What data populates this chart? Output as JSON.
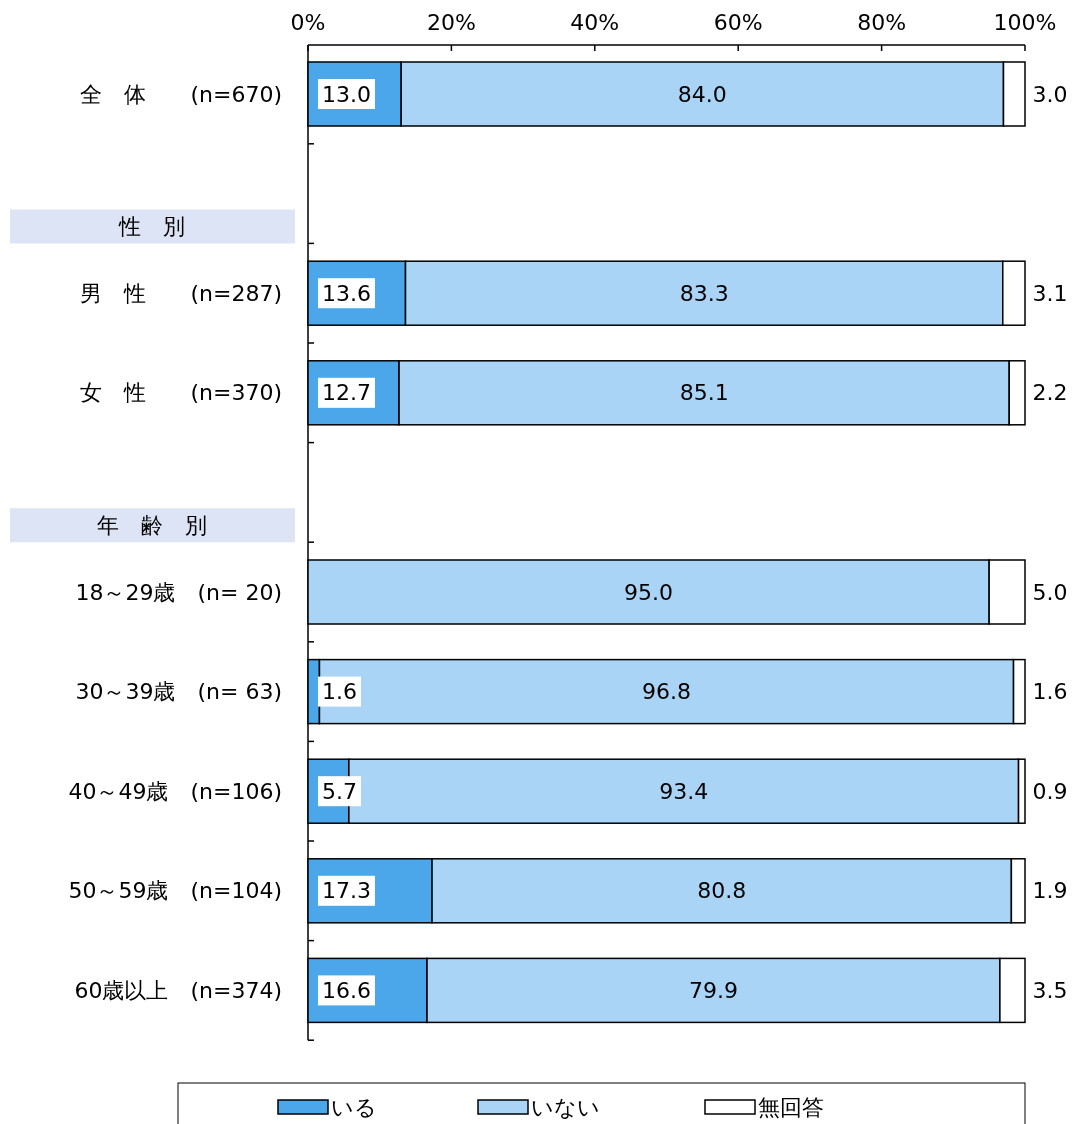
{
  "chart_data": {
    "type": "bar",
    "orientation": "horizontal",
    "stacked": true,
    "legend": "bottom",
    "grid": false,
    "categories": [
      "全　体　　(n=670)",
      null,
      "男　性　　(n=287)",
      "女　性　　(n=370)",
      null,
      "18～29歳　(n=  20)",
      "30～39歳　(n=  63)",
      "40～49歳　(n=106)",
      "50～59歳　(n=104)",
      "60歳以上　(n=374)"
    ],
    "series": [
      {
        "name": "いる",
        "color": "#4ba7ea",
        "values": [
          13.0,
          null,
          13.6,
          12.7,
          null,
          0,
          1.6,
          5.7,
          17.3,
          16.6
        ],
        "value_labels": [
          "13.0",
          null,
          "13.6",
          "12.7",
          null,
          null,
          "1.6",
          "5.7",
          "17.3",
          "16.6"
        ]
      },
      {
        "name": "いない",
        "color": "#a9d4f5",
        "values": [
          84.0,
          null,
          83.3,
          85.1,
          null,
          95.0,
          96.8,
          93.4,
          80.8,
          79.9
        ],
        "value_labels": [
          "84.0",
          null,
          "83.3",
          "85.1",
          null,
          "95.0",
          "96.8",
          "93.4",
          "80.8",
          "79.9"
        ]
      },
      {
        "name": "無回答",
        "color": "#ffffff",
        "values": [
          3.0,
          null,
          3.1,
          2.2,
          null,
          5.0,
          1.6,
          0.9,
          1.9,
          3.5
        ],
        "value_labels": [
          "3.0",
          null,
          "3.1",
          "2.2",
          null,
          "5.0",
          "1.6",
          "0.9",
          "1.9",
          "3.5"
        ]
      }
    ],
    "xlim": [
      0,
      100
    ],
    "xticks": [
      {
        "value": 0,
        "label": "0%"
      },
      {
        "value": 20,
        "label": "20%"
      },
      {
        "value": 40,
        "label": "40%"
      },
      {
        "value": 60,
        "label": "60%"
      },
      {
        "value": 80,
        "label": "80%"
      },
      {
        "value": 100,
        "label": "100%"
      }
    ],
    "annotations": [
      "性　別",
      "年　齢　別"
    ]
  }
}
